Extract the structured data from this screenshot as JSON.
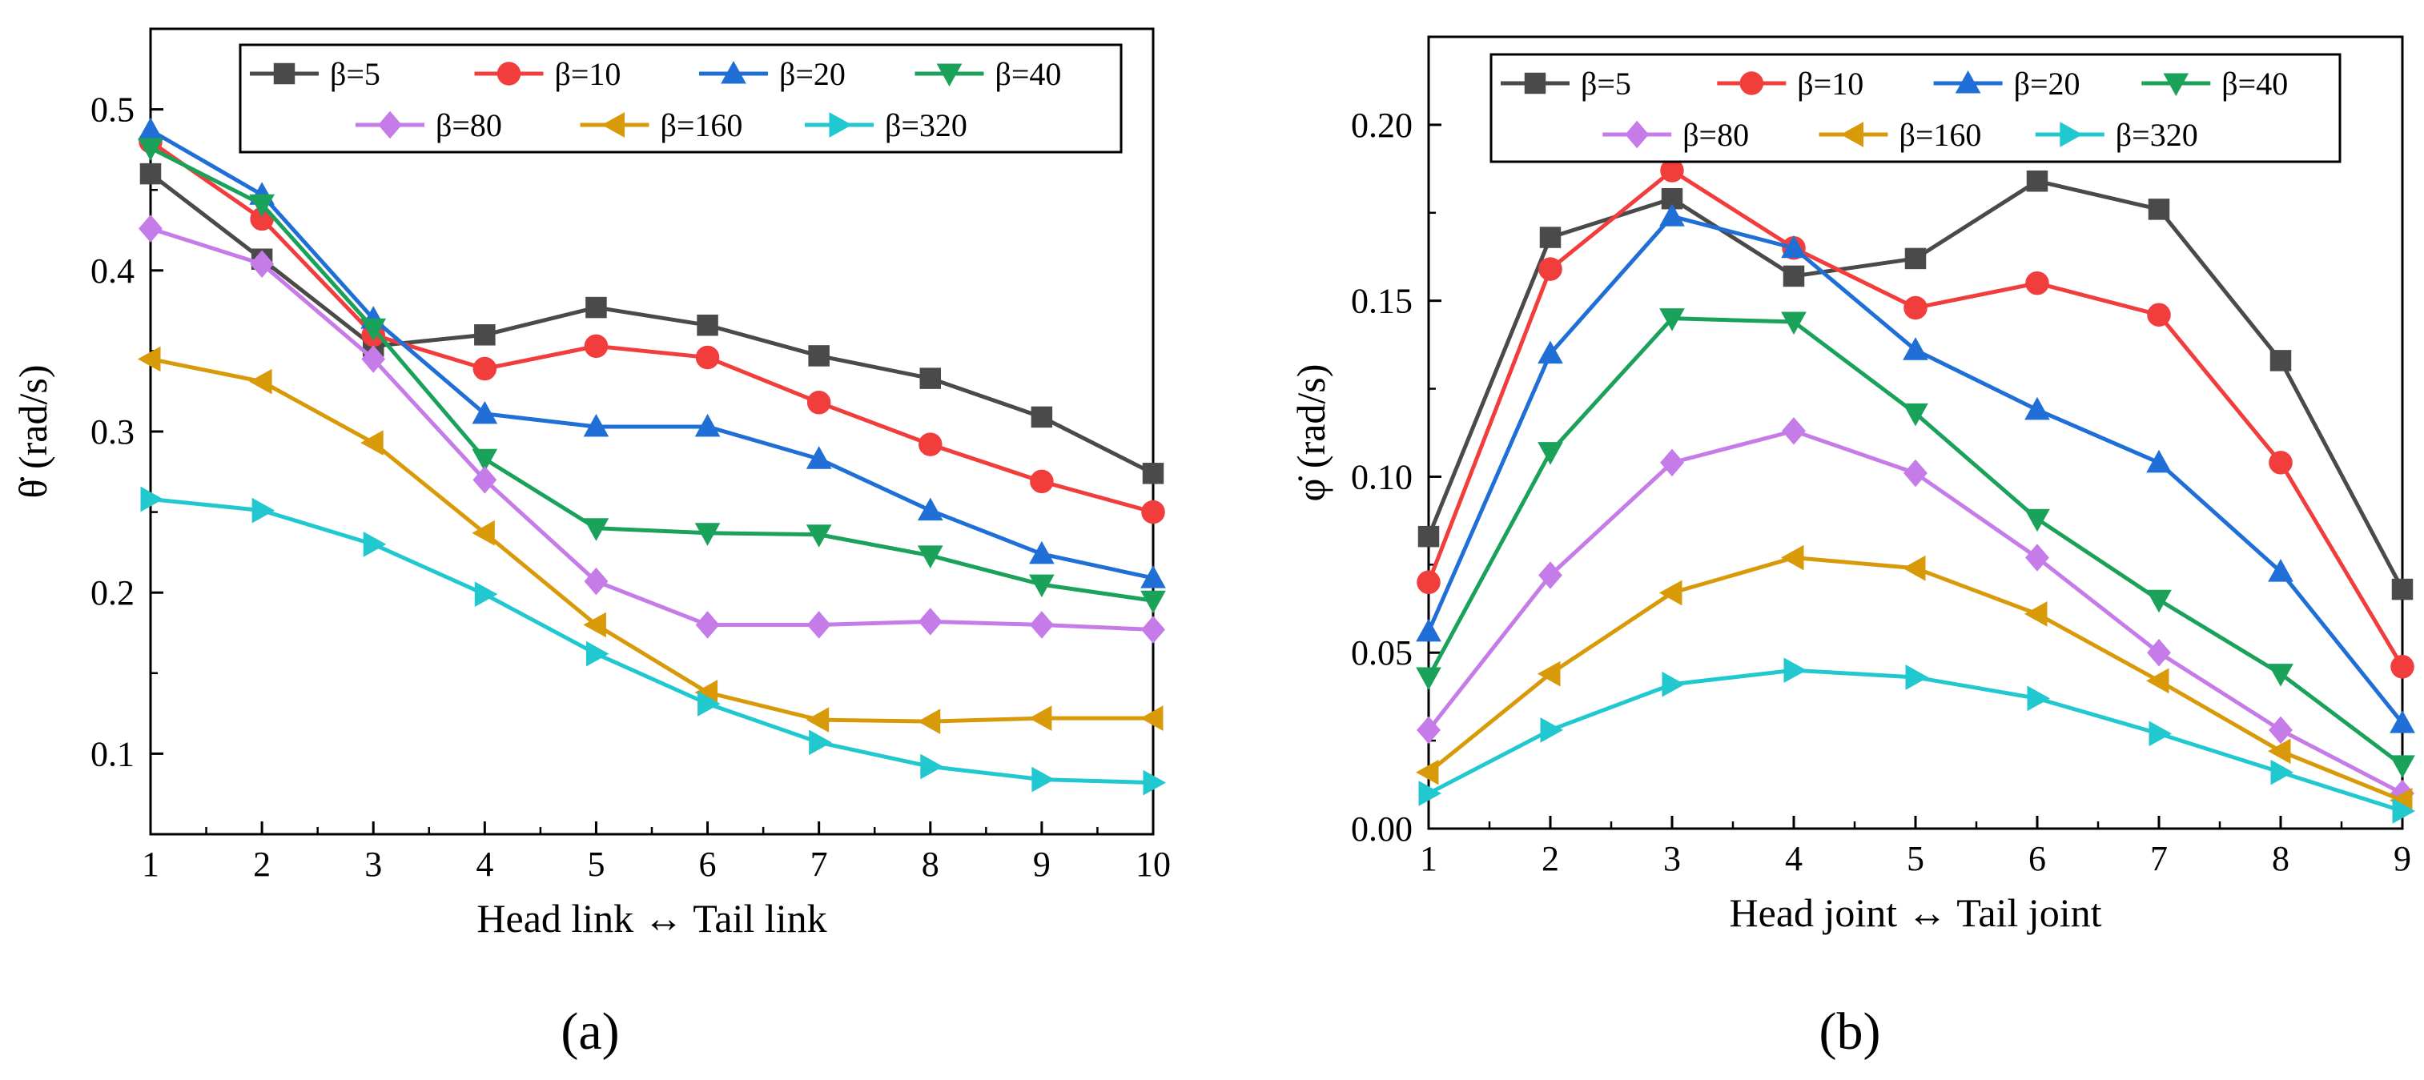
{
  "chart_data": [
    {
      "type": "line",
      "panel_label": "(a)",
      "xlabel": "Head link ↔ Tail link",
      "ylabel": "θ̇ (rad/s)",
      "xlim": [
        1,
        10
      ],
      "ylim": [
        0.05,
        0.55
      ],
      "x": [
        1,
        2,
        3,
        4,
        5,
        6,
        7,
        8,
        9,
        10
      ],
      "x_ticks": [
        "1",
        "2",
        "3",
        "4",
        "5",
        "6",
        "7",
        "8",
        "9",
        "10"
      ],
      "y_ticks": [
        "0.1",
        "0.2",
        "0.3",
        "0.4",
        "0.5"
      ],
      "y_tick_values": [
        0.1,
        0.2,
        0.3,
        0.4,
        0.5
      ],
      "legend_position": "top",
      "series": [
        {
          "name": "β=5",
          "color": "#4a4a4a",
          "marker": "square",
          "values": [
            0.46,
            0.407,
            0.353,
            0.36,
            0.377,
            0.366,
            0.347,
            0.333,
            0.309,
            0.274
          ]
        },
        {
          "name": "β=10",
          "color": "#f23d3d",
          "marker": "circle",
          "values": [
            0.48,
            0.432,
            0.36,
            0.339,
            0.353,
            0.346,
            0.318,
            0.292,
            0.269,
            0.25
          ]
        },
        {
          "name": "β=20",
          "color": "#1f6fd6",
          "marker": "triangle-up",
          "values": [
            0.487,
            0.447,
            0.37,
            0.311,
            0.303,
            0.303,
            0.283,
            0.251,
            0.224,
            0.209
          ]
        },
        {
          "name": "β=40",
          "color": "#1aa15a",
          "marker": "triangle-down",
          "values": [
            0.476,
            0.441,
            0.364,
            0.283,
            0.24,
            0.237,
            0.236,
            0.223,
            0.205,
            0.195
          ]
        },
        {
          "name": "β=80",
          "color": "#c57be8",
          "marker": "diamond",
          "values": [
            0.426,
            0.404,
            0.345,
            0.27,
            0.207,
            0.18,
            0.18,
            0.182,
            0.18,
            0.177
          ]
        },
        {
          "name": "β=160",
          "color": "#d99a0a",
          "marker": "triangle-left",
          "values": [
            0.345,
            0.331,
            0.293,
            0.237,
            0.18,
            0.138,
            0.121,
            0.12,
            0.122,
            0.122
          ]
        },
        {
          "name": "β=320",
          "color": "#22c8d0",
          "marker": "triangle-right",
          "values": [
            0.258,
            0.251,
            0.23,
            0.199,
            0.162,
            0.131,
            0.107,
            0.092,
            0.084,
            0.082
          ]
        }
      ]
    },
    {
      "type": "line",
      "panel_label": "(b)",
      "xlabel": "Head joint ↔ Tail joint",
      "ylabel": "φ̇ (rad/s)",
      "xlim": [
        1,
        9
      ],
      "ylim": [
        0,
        0.225
      ],
      "x": [
        1,
        2,
        3,
        4,
        5,
        6,
        7,
        8,
        9
      ],
      "x_ticks": [
        "1",
        "2",
        "3",
        "4",
        "5",
        "6",
        "7",
        "8",
        "9"
      ],
      "y_ticks": [
        "0.00",
        "0.05",
        "0.10",
        "0.15",
        "0.20"
      ],
      "y_tick_values": [
        0,
        0.05,
        0.1,
        0.15,
        0.2
      ],
      "legend_position": "top",
      "series": [
        {
          "name": "β=5",
          "color": "#4a4a4a",
          "marker": "square",
          "values": [
            0.083,
            0.168,
            0.179,
            0.157,
            0.162,
            0.184,
            0.176,
            0.133,
            0.068
          ]
        },
        {
          "name": "β=10",
          "color": "#f23d3d",
          "marker": "circle",
          "values": [
            0.07,
            0.159,
            0.187,
            0.165,
            0.148,
            0.155,
            0.146,
            0.104,
            0.046
          ]
        },
        {
          "name": "β=20",
          "color": "#1f6fd6",
          "marker": "triangle-up",
          "values": [
            0.056,
            0.135,
            0.174,
            0.165,
            0.136,
            0.119,
            0.104,
            0.073,
            0.03
          ]
        },
        {
          "name": "β=40",
          "color": "#1aa15a",
          "marker": "triangle-down",
          "values": [
            0.043,
            0.107,
            0.145,
            0.144,
            0.118,
            0.088,
            0.065,
            0.044,
            0.018
          ]
        },
        {
          "name": "β=80",
          "color": "#c57be8",
          "marker": "diamond",
          "values": [
            0.028,
            0.072,
            0.104,
            0.113,
            0.101,
            0.077,
            0.05,
            0.028,
            0.01
          ]
        },
        {
          "name": "β=160",
          "color": "#d99a0a",
          "marker": "triangle-left",
          "values": [
            0.016,
            0.044,
            0.067,
            0.077,
            0.074,
            0.061,
            0.042,
            0.022,
            0.008
          ]
        },
        {
          "name": "β=320",
          "color": "#22c8d0",
          "marker": "triangle-right",
          "values": [
            0.01,
            0.028,
            0.041,
            0.045,
            0.043,
            0.037,
            0.027,
            0.016,
            0.005
          ]
        }
      ]
    }
  ]
}
